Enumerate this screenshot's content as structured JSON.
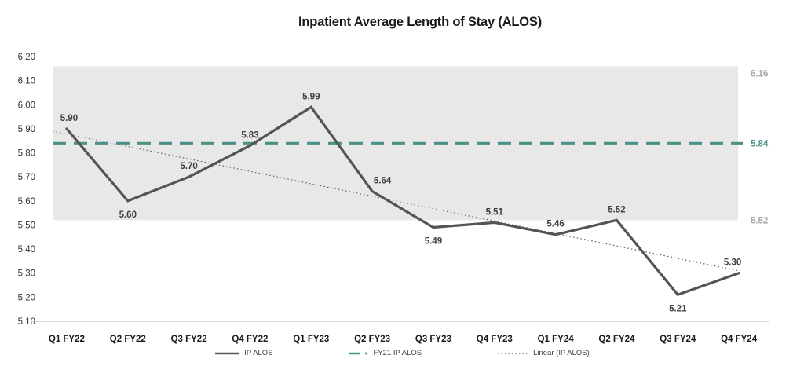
{
  "chart_data": {
    "type": "line",
    "title": "Inpatient Average Length of Stay (ALOS)",
    "categories": [
      "Q1 FY22",
      "Q2 FY22",
      "Q3 FY22",
      "Q4 FY22",
      "Q1 FY23",
      "Q2 FY23",
      "Q3 FY23",
      "Q4 FY23",
      "Q1 FY24",
      "Q2 FY24",
      "Q3 FY24",
      "Q4 FY24"
    ],
    "series": [
      {
        "name": "IP ALOS",
        "color": "#545454",
        "values": [
          5.9,
          5.6,
          5.7,
          5.83,
          5.99,
          5.64,
          5.49,
          5.51,
          5.46,
          5.52,
          5.21,
          5.3
        ],
        "data_labels": [
          "5.90",
          "5.60",
          "5.70",
          "5.83",
          "5.99",
          "5.64",
          "5.49",
          "5.51",
          "5.46",
          "5.52",
          "5.21",
          "5.30"
        ],
        "label_positions": [
          "above",
          "below",
          "above",
          "above",
          "above",
          "above",
          "below",
          "above",
          "above",
          "above",
          "below",
          "above"
        ],
        "label_color": "#404040"
      }
    ],
    "reference_line": {
      "name": "FY21 IP ALOS",
      "value": 5.84,
      "label": "5.84",
      "color": "#4a9186",
      "style": "dashed"
    },
    "trendline": {
      "name": "Linear (IP ALOS)",
      "start_value": 5.89,
      "end_value": 5.31,
      "color": "#666666",
      "style": "dotted"
    },
    "band": {
      "top_value": 6.16,
      "bottom_value": 5.52,
      "top_label": "6.16",
      "bottom_label": "5.52",
      "fill_color": "#e8e8e8",
      "label_color": "#a6a6a6"
    },
    "y_axis": {
      "min": 5.1,
      "max": 6.2,
      "step": 0.1,
      "ticks": [
        "6.20",
        "6.10",
        "6.00",
        "5.90",
        "5.80",
        "5.70",
        "5.60",
        "5.50",
        "5.40",
        "5.30",
        "5.20",
        "5.10"
      ],
      "tick_color": "#333333"
    },
    "x_axis": {
      "tick_color": "#1a1a1a",
      "axis_line_color": "#d9d9d9"
    },
    "legend": {
      "position": "bottom",
      "entries": [
        {
          "label": "IP ALOS",
          "style": "solid",
          "color": "#595959"
        },
        {
          "label": "FY21 IP ALOS",
          "style": "dash-dot",
          "color": "#4a9186"
        },
        {
          "label": "Linear (IP ALOS)",
          "style": "dotted",
          "color": "#595959"
        }
      ]
    },
    "grid": false
  }
}
